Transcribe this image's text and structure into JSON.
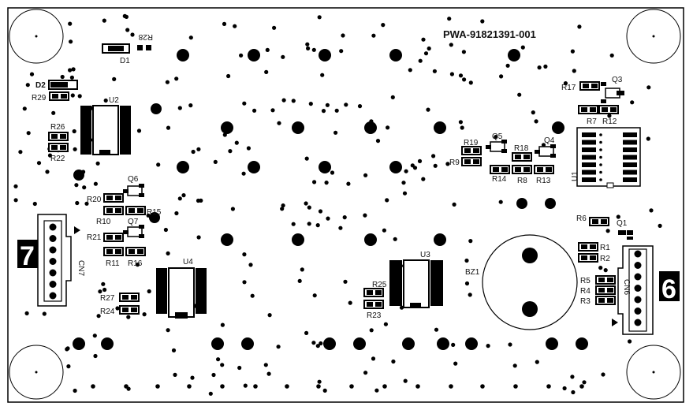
{
  "board": {
    "part_number": "PWA-91821391-001",
    "connector_number_left": "7",
    "connector_number_right": "6"
  },
  "components": {
    "D1": "D1",
    "D2": "D2",
    "R28": "R28",
    "R29": "R29",
    "U2": "U2",
    "R26": "R26",
    "R22": "R22",
    "Q6": "Q6",
    "R20": "R20",
    "R10": "R10",
    "R15": "R15",
    "R21": "R21",
    "Q7": "Q7",
    "R11": "R11",
    "R16": "R16",
    "CN7": "CN7",
    "R27": "R27",
    "R24": "R24",
    "U4": "U4",
    "U3": "U3",
    "R25": "R25",
    "R23": "R23",
    "R19": "R19",
    "R9": "R9",
    "Q5": "Q5",
    "R14": "R14",
    "R18": "R18",
    "R8": "R8",
    "Q4": "Q4",
    "R13": "R13",
    "R17": "R17",
    "Q3": "Q3",
    "R7": "R7",
    "R12": "R12",
    "U1": "U1",
    "R6": "R6",
    "Q1": "Q1",
    "R1": "R1",
    "R2": "R2",
    "R5": "R5",
    "R4": "R4",
    "R3": "R3",
    "CN6": "CN6",
    "BZ1": "BZ1"
  },
  "colors": {
    "ink": "#000000",
    "paper": "#ffffff"
  }
}
